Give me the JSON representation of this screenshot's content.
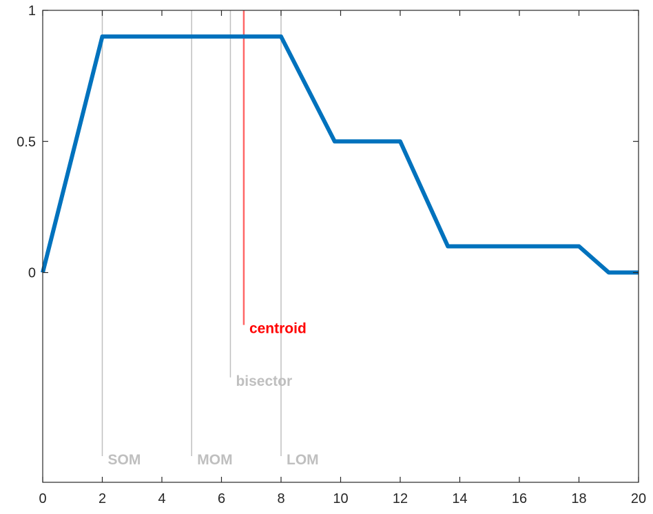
{
  "chart_data": {
    "type": "line",
    "title": "",
    "xlabel": "",
    "ylabel": "",
    "xlim": [
      0,
      20
    ],
    "ylim": [
      -0.8,
      1
    ],
    "x_ticks": [
      0,
      2,
      4,
      6,
      8,
      10,
      12,
      14,
      16,
      18,
      20
    ],
    "x_tick_labels": [
      "0",
      "2",
      "4",
      "6",
      "8",
      "10",
      "12",
      "14",
      "16",
      "18",
      "20"
    ],
    "y_ticks": [
      0,
      0.5,
      1
    ],
    "y_tick_labels": [
      "0",
      "0.5",
      "1"
    ],
    "grid": false,
    "series": [
      {
        "x": [
          0,
          2,
          8,
          9.8,
          12,
          13.6,
          18,
          19,
          20
        ],
        "y": [
          0,
          0.9,
          0.9,
          0.5,
          0.5,
          0.1,
          0.1,
          0,
          0
        ],
        "color": "#0072BD"
      }
    ],
    "annotations": [
      {
        "label": "SOM",
        "x": 2,
        "y_bottom": -0.7,
        "color": "#BFBFBF"
      },
      {
        "label": "MOM",
        "x": 5,
        "y_bottom": -0.7,
        "color": "#BFBFBF"
      },
      {
        "label": "bisector",
        "x": 6.3,
        "y_bottom": -0.4,
        "color": "#BFBFBF"
      },
      {
        "label": "centroid",
        "x": 6.75,
        "y_bottom": -0.2,
        "color": "#FF0000"
      },
      {
        "label": "LOM",
        "x": 8,
        "y_bottom": -0.7,
        "color": "#BFBFBF"
      }
    ]
  }
}
